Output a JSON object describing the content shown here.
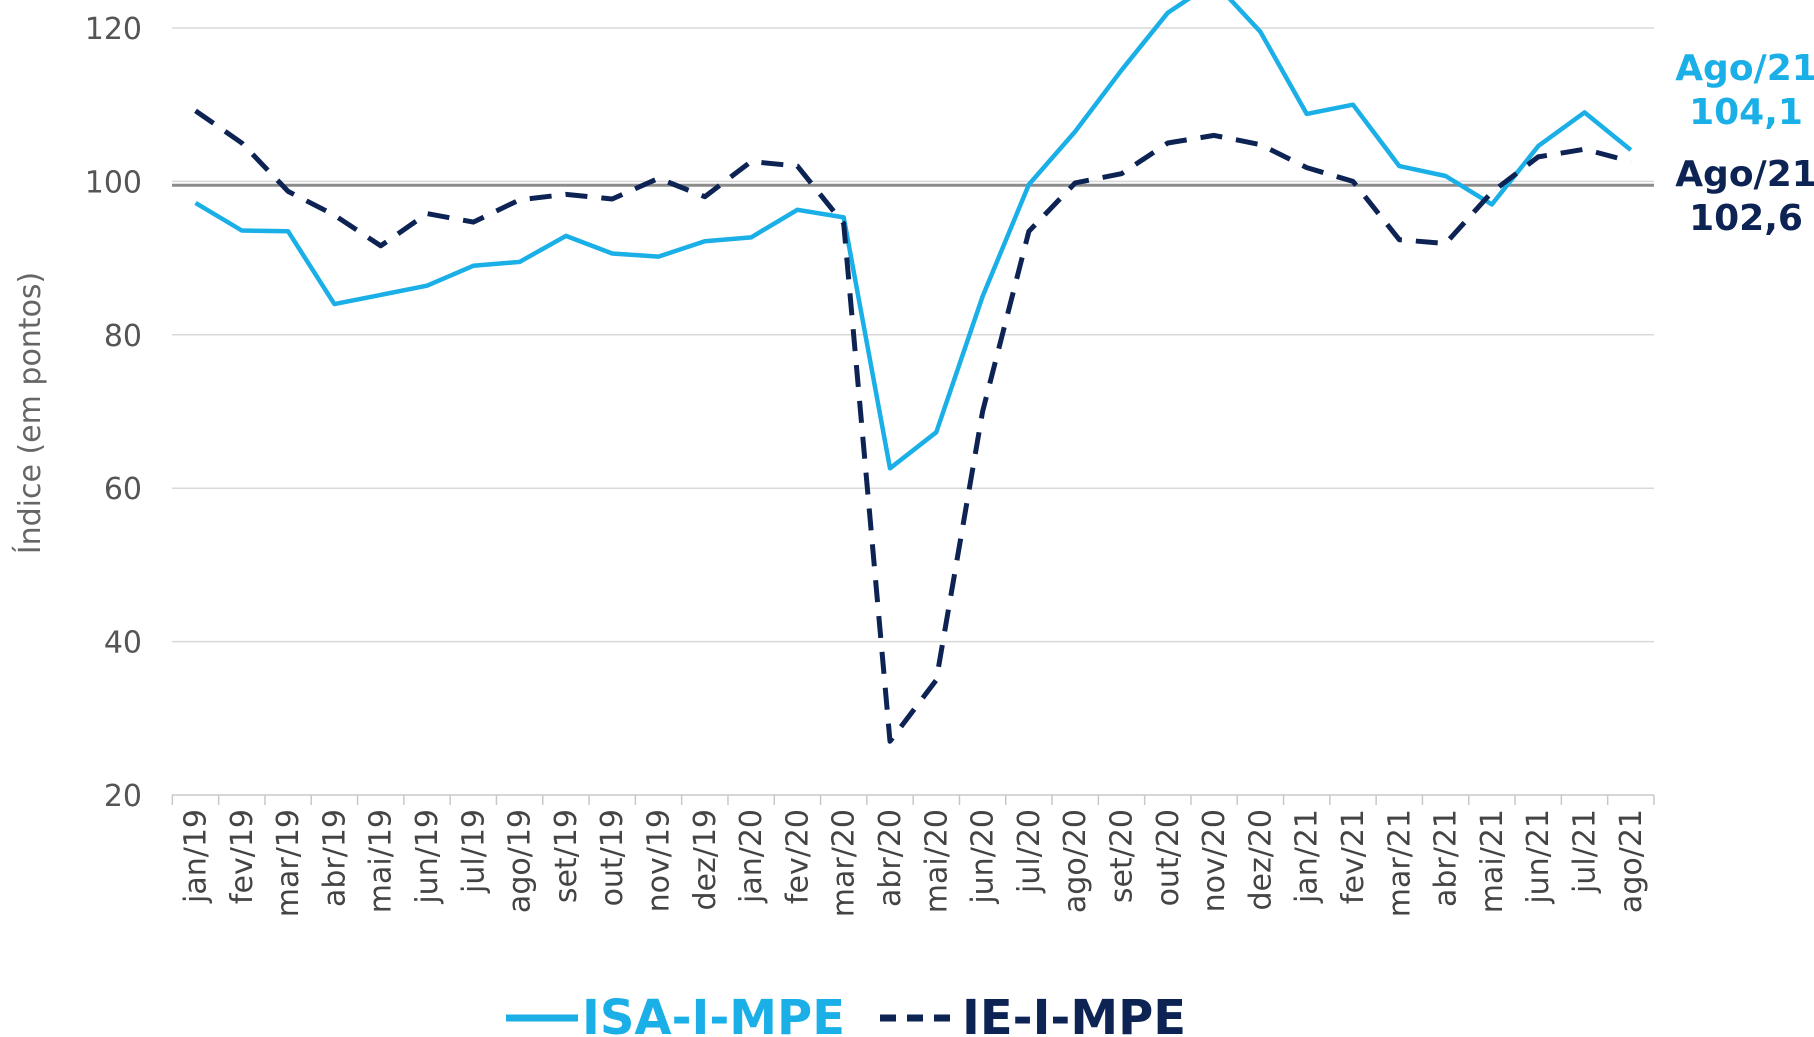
{
  "chart_data": {
    "type": "line",
    "title": "",
    "xlabel": "",
    "ylabel": "Índice (em pontos)",
    "ylim": [
      20,
      125
    ],
    "yticks": [
      20,
      40,
      60,
      80,
      100,
      120
    ],
    "grid": true,
    "reference_line": 100,
    "legend_position": "bottom",
    "categories": [
      "jan/19",
      "fev/19",
      "mar/19",
      "abr/19",
      "mai/19",
      "jun/19",
      "jul/19",
      "ago/19",
      "set/19",
      "out/19",
      "nov/19",
      "dez/19",
      "jan/20",
      "fev/20",
      "mar/20",
      "abr/20",
      "mai/20",
      "jun/20",
      "jul/20",
      "ago/20",
      "set/20",
      "out/20",
      "nov/20",
      "dez/20",
      "jan/21",
      "fev/21",
      "mar/21",
      "abr/21",
      "mai/21",
      "jun/21",
      "jul/21",
      "ago/21"
    ],
    "series": [
      {
        "name": "ISA-I-MPE",
        "color": "#1AAFE6",
        "style": "solid",
        "values": [
          97.2,
          93.6,
          93.5,
          84.0,
          85.2,
          86.4,
          89.0,
          89.5,
          92.9,
          90.6,
          90.2,
          92.2,
          92.7,
          96.3,
          95.3,
          62.6,
          67.3,
          85.0,
          99.6,
          106.5,
          114.5,
          122.0,
          126.0,
          119.5,
          108.8,
          110.0,
          102.0,
          100.7,
          97.0,
          104.6,
          109.0,
          104.1
        ]
      },
      {
        "name": "IE-I-MPE",
        "color": "#0D2354",
        "style": "dashed",
        "values": [
          109.2,
          105.0,
          98.7,
          95.6,
          91.6,
          95.8,
          94.7,
          97.6,
          98.3,
          97.7,
          100.4,
          98.0,
          102.6,
          102.0,
          94.5,
          27.0,
          35.0,
          70.0,
          93.5,
          99.8,
          101.0,
          105.0,
          106.0,
          104.8,
          101.8,
          100.0,
          92.4,
          91.9,
          98.6,
          103.2,
          104.2,
          102.6
        ]
      }
    ],
    "annotations": [
      {
        "line1": "Ago/21",
        "line2": "104,1",
        "color": "#1AAFE6"
      },
      {
        "line1": "Ago/21",
        "line2": "102,6",
        "color": "#0D2354"
      }
    ]
  }
}
